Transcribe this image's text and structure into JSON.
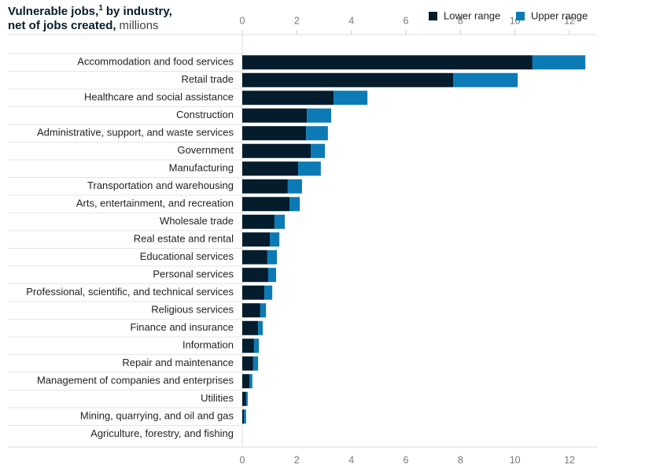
{
  "chart_data": {
    "type": "stacked-bar-horizontal",
    "title": "Vulnerable jobs,",
    "title_note": "1",
    "title_rest": "by industry,",
    "subtitle_bold": "net of jobs created,",
    "subtitle": "millions",
    "categories": [
      "Accommodation and food services",
      "Retail trade",
      "Healthcare and social assistance",
      "Construction",
      "Administrative, support, and waste services",
      "Government",
      "Manufacturing",
      "Transportation and warehousing",
      "Arts, entertainment, and recreation",
      "Wholesale trade",
      "Real estate and rental",
      "Educational services",
      "Personal services",
      "Professional, scientific, and technical services",
      "Religious services",
      "Finance and insurance",
      "Information",
      "Repair and maintenance",
      "Management of companies and enterprises",
      "Utilities",
      "Mining, quarrying, and oil and gas",
      "Agriculture, forestry, and fishing"
    ],
    "series": [
      {
        "name": "Lower range",
        "color": "#051c2c",
        "values": [
          10.64,
          7.73,
          3.35,
          2.37,
          2.34,
          2.51,
          2.05,
          1.67,
          1.73,
          1.18,
          1.01,
          0.92,
          0.95,
          0.81,
          0.66,
          0.58,
          0.43,
          0.4,
          0.26,
          0.14,
          0.06,
          0
        ]
      },
      {
        "name": "Upper range",
        "color": "#0b7ab5",
        "values": [
          1.94,
          2.37,
          1.24,
          0.89,
          0.8,
          0.52,
          0.83,
          0.52,
          0.38,
          0.38,
          0.35,
          0.35,
          0.29,
          0.29,
          0.21,
          0.17,
          0.18,
          0.18,
          0.11,
          0.06,
          0.08,
          0
        ]
      }
    ],
    "xlim": [
      0,
      13
    ],
    "xticks": [
      0,
      2,
      4,
      6,
      8,
      10,
      12
    ],
    "grid": false
  }
}
